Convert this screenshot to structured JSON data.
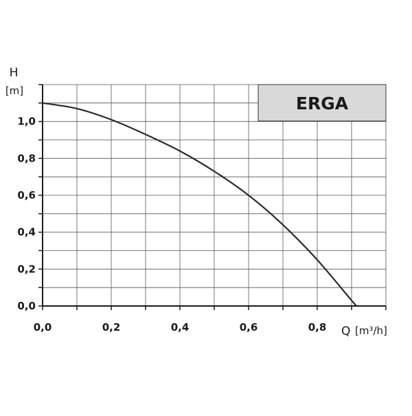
{
  "chart_data": {
    "type": "line",
    "badge": "ERGA",
    "ylabel": "H",
    "yunit": "[m]",
    "xlabel": "Q",
    "xunit": "[m³/h]",
    "xlim": [
      0.0,
      1.0
    ],
    "ylim": [
      0.0,
      1.2
    ],
    "x_ticks": [
      0.0,
      0.2,
      0.4,
      0.6,
      0.8
    ],
    "x_tick_labels": [
      "0,0",
      "0,2",
      "0,4",
      "0,6",
      "0,8"
    ],
    "y_ticks": [
      0.0,
      0.2,
      0.4,
      0.6,
      0.8,
      1.0
    ],
    "y_tick_labels": [
      "0,0",
      "0,2",
      "0,4",
      "0,6",
      "0,8",
      "1,0"
    ],
    "grid": true,
    "x_grid_step": 0.1,
    "y_grid_step": 0.1,
    "colors": {
      "curve": "#2a2a2a",
      "grid": "#555555",
      "badge_fill": "#d9d9d9"
    },
    "series": [
      {
        "x": [
          0.0,
          0.1,
          0.2,
          0.3,
          0.4,
          0.5,
          0.6,
          0.7,
          0.8,
          0.9,
          0.915
        ],
        "y": [
          1.1,
          1.07,
          1.01,
          0.93,
          0.84,
          0.73,
          0.6,
          0.44,
          0.25,
          0.03,
          0.0
        ]
      }
    ]
  }
}
